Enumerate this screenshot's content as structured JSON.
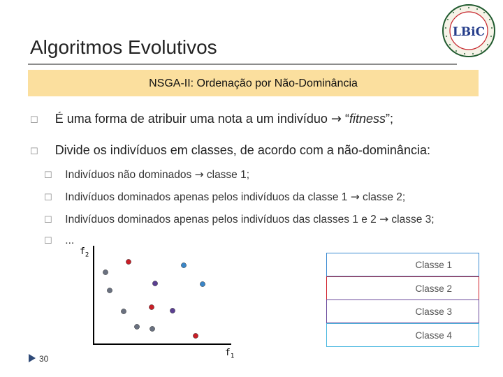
{
  "slide": {
    "title": "Algoritmos Evolutivos",
    "subtitle": "NSGA-II: Ordenação por Não-Dominância",
    "page_number": "30"
  },
  "logo": {
    "text": "LBiC",
    "ring_text": "Laboratório de Bioinformática e Computação Bioinspirada",
    "colors": {
      "text": "#243c8a",
      "ring": "#1f5a2e",
      "accent": "#c6232a"
    }
  },
  "bullets": {
    "level1": [
      {
        "pre": "É uma forma de atribuir uma nota a um indivíduo ",
        "arrow": "→",
        "post_open": " “",
        "em": "fitness",
        "post_close": "”;"
      },
      {
        "text": "Divide os indivíduos em classes, de acordo com a não-dominância:"
      }
    ],
    "level2": [
      {
        "pre": "Indivíduos não dominados ",
        "arrow": "→",
        "post": " classe 1;"
      },
      {
        "pre": "Indivíduos dominados apenas pelos indivíduos da classe 1 ",
        "arrow": "→",
        "post": " classe 2;"
      },
      {
        "pre": "Indivíduos dominados apenas pelos indivíduos das classes 1 e 2 ",
        "arrow": "→",
        "post": " classe 3;"
      },
      {
        "pre": "...",
        "arrow": "",
        "post": ""
      }
    ],
    "bullet_glyph": "☐"
  },
  "diagram": {
    "y_axis_label": "f",
    "y_axis_sub": "2",
    "x_axis_label": "f",
    "x_axis_sub": "1",
    "classes": [
      {
        "label": "Classe 1",
        "color": "#3b8ad1"
      },
      {
        "label": "Classe 2",
        "color": "#d0202a"
      },
      {
        "label": "Classe 3",
        "color": "#6a4a9c"
      },
      {
        "label": "Classe 4",
        "color": "#4ab8e0"
      }
    ],
    "points": [
      {
        "class": 2,
        "color": "#c81e27"
      },
      {
        "class": 0,
        "color": "#6a7180"
      },
      {
        "class": 1,
        "color": "#3a86c8"
      },
      {
        "class": 0,
        "color": "#6a7180"
      },
      {
        "class": 3,
        "color": "#5b3f92"
      },
      {
        "class": 4,
        "color": "#3a86c8"
      },
      {
        "class": 0,
        "color": "#6a7180"
      },
      {
        "class": 2,
        "color": "#c81e27"
      },
      {
        "class": 0,
        "color": "#6a7180"
      },
      {
        "class": 3,
        "color": "#5b3f92"
      },
      {
        "class": 0,
        "color": "#6a7180"
      },
      {
        "class": 2,
        "color": "#c81e27"
      }
    ]
  }
}
